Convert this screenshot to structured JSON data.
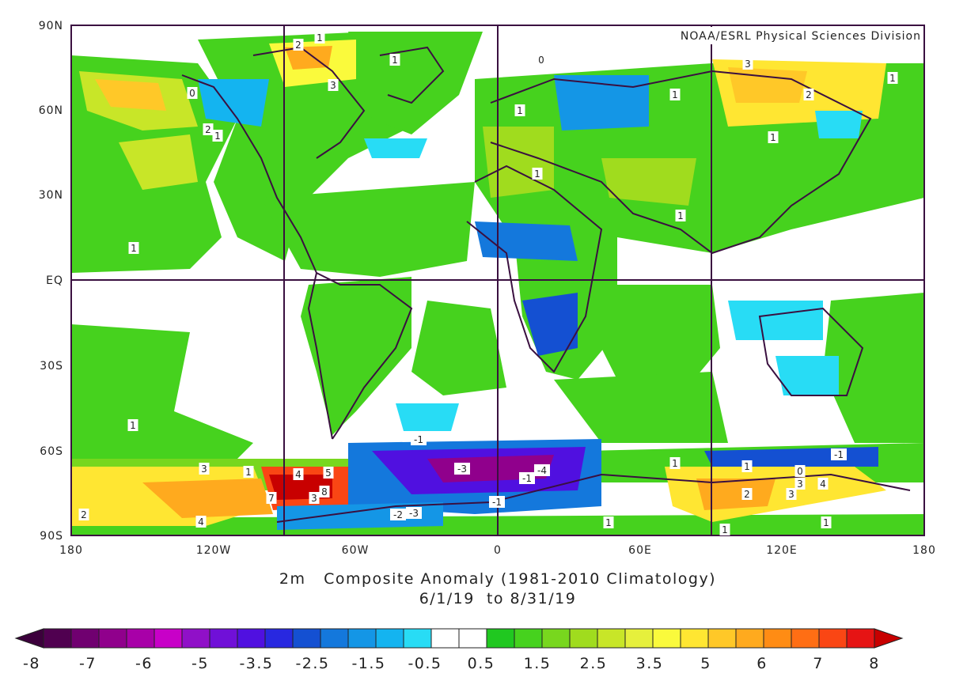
{
  "credit": "NOAA/ESRL Physical Sciences Division",
  "caption": {
    "line1": "2m   Composite Anomaly (1981-2010 Climatology)",
    "line2": "6/1/19  to 8/31/19"
  },
  "axes": {
    "lat_labels": [
      "90N",
      "60N",
      "30N",
      "EQ",
      "30S",
      "60S",
      "90S"
    ],
    "lon_labels": [
      "180",
      "120W",
      "60W",
      "0",
      "60E",
      "120E",
      "180"
    ]
  },
  "colorbar": {
    "tick_labels": [
      "-8",
      "-7",
      "-6",
      "-5",
      "-3.5",
      "-2.5",
      "-1.5",
      "-0.5",
      "0.5",
      "1.5",
      "2.5",
      "3.5",
      "5",
      "6",
      "7",
      "8"
    ],
    "colors": [
      "#500050",
      "#700070",
      "#90008c",
      "#a800a8",
      "#c800c8",
      "#9010c8",
      "#7010d8",
      "#5010e0",
      "#2828e0",
      "#1450d2",
      "#1478dc",
      "#1496e6",
      "#14b4f0",
      "#28dcf5",
      "#ffffff",
      "#ffffff",
      "#20c820",
      "#46d21e",
      "#78d71e",
      "#a0dc1e",
      "#c8e628",
      "#e6f03c",
      "#fafa3c",
      "#ffe632",
      "#ffc828",
      "#ffaa1e",
      "#ff8c14",
      "#ff6e14",
      "#fa4614",
      "#e61414"
    ],
    "end_colors": [
      "#3c003c",
      "#c80000"
    ]
  },
  "contour_labels": [
    "1",
    "2",
    "3",
    "4",
    "5",
    "7",
    "8",
    "0",
    "-1",
    "-2",
    "-3",
    "-4"
  ],
  "colors": {
    "frame": "#3a1040",
    "land": "#20c820",
    "ocean_neutral": "#ffffff"
  }
}
